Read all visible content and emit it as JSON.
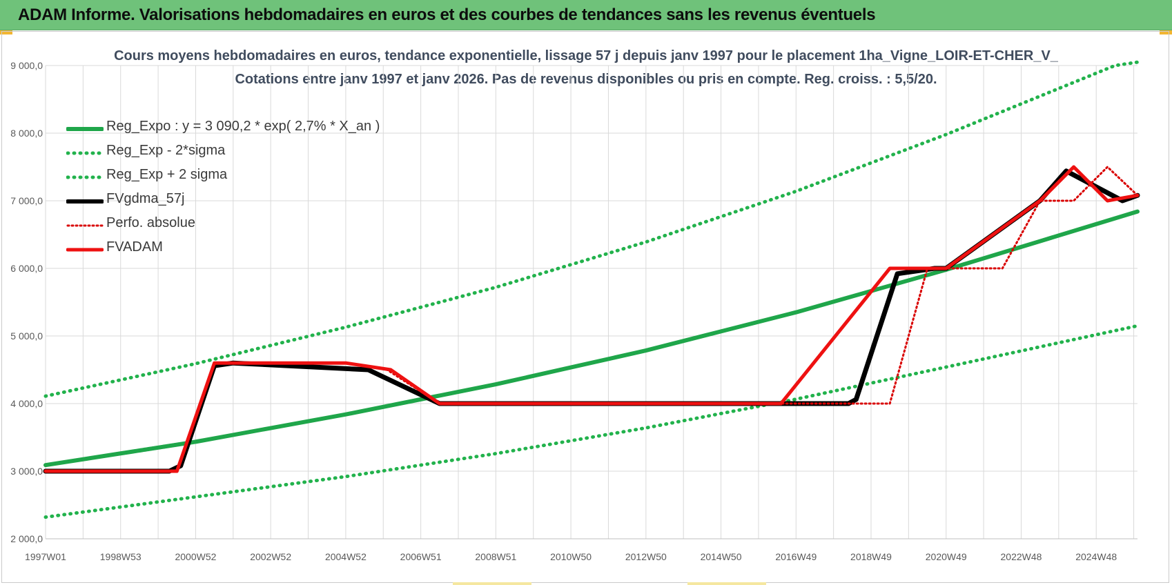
{
  "banner": {
    "title": "ADAM Informe. Valorisations hebdomadaires en euros et des courbes de tendances sans les revenus éventuels"
  },
  "colors": {
    "banner": "#6fc27a",
    "reg_expo": "#1fa64a",
    "sigma": "#22b24c",
    "fvgdma": "#000000",
    "perfo": "#d90000",
    "fvadam": "#ee1111",
    "grid": "#d9d9d9",
    "axis_text": "#595959"
  },
  "chart_data": {
    "type": "line",
    "title_line1": "Cours moyens hebdomadaires en euros, tendance exponentielle, lissage 57 j depuis janv 1997 pour le placement 1ha_Vigne_LOIR-ET-CHER_V_",
    "title_line2": "Cotations entre janv 1997 et janv 2026. Pas de revenus disponibles ou pris en compte. Reg. croiss. : 5,5/20.",
    "ylim": [
      2000,
      9000
    ],
    "xlim": [
      1997.0,
      2026.1
    ],
    "y_ticks": [
      "2 000,0",
      "3 000,0",
      "4 000,0",
      "5 000,0",
      "6 000,0",
      "7 000,0",
      "8 000,0",
      "9 000,0"
    ],
    "y_tick_values": [
      2000,
      3000,
      4000,
      5000,
      6000,
      7000,
      8000,
      9000
    ],
    "x_tick_labels": [
      "1997W01",
      "1998W53",
      "2000W52",
      "2002W52",
      "2004W52",
      "2006W51",
      "2008W51",
      "2010W50",
      "2012W50",
      "2014W50",
      "2016W49",
      "2018W49",
      "2020W49",
      "2022W48",
      "2024W48"
    ],
    "x_tick_values": [
      1997,
      1999,
      2001,
      2003,
      2005,
      2007,
      2009,
      2011,
      2013,
      2015,
      2017,
      2019,
      2021,
      2023,
      2025
    ],
    "grid": true,
    "legend_position": "top-left",
    "series": [
      {
        "name": "Reg_Expo : y = 3 090,2 * exp( 2,7% *  X_an )",
        "style": "solid-green",
        "x": [
          1997,
          2001,
          2005,
          2009,
          2013,
          2017,
          2021,
          2026.1
        ],
        "y": [
          3090,
          3435,
          3840,
          4285,
          4785,
          5350,
          5980,
          6840
        ]
      },
      {
        "name": "Reg_Exp - 2*sigma",
        "style": "dotted-green",
        "x": [
          1997,
          2001,
          2005,
          2009,
          2013,
          2017,
          2021,
          2026.1
        ],
        "y": [
          2320,
          2620,
          2920,
          3260,
          3640,
          4065,
          4540,
          5150
        ]
      },
      {
        "name": "Reg_Exp + 2 sigma",
        "style": "dotted-green",
        "x": [
          1997,
          2001,
          2005,
          2009,
          2013,
          2017,
          2021,
          2025.5,
          2026.1
        ],
        "y": [
          4110,
          4590,
          5130,
          5720,
          6390,
          7140,
          7980,
          9000,
          9050
        ]
      },
      {
        "name": "FVgdma_57j",
        "style": "solid-black",
        "x": [
          1997,
          2000.3,
          2000.6,
          2001.5,
          2002.0,
          2005.6,
          2007.5,
          2018.4,
          2018.6,
          2019.7,
          2020.7,
          2021.0,
          2023.5,
          2024.2,
          2025.7,
          2026.1
        ],
        "y": [
          3000,
          3000,
          3080,
          4560,
          4600,
          4500,
          4000,
          4000,
          4060,
          5920,
          6000,
          6000,
          7000,
          7440,
          7000,
          7080
        ]
      },
      {
        "name": "Perfo. absolue",
        "style": "dotted-red",
        "x": [
          1997,
          2000.5,
          2001.5,
          2005.0,
          2006.1,
          2007.5,
          2018.6,
          2019.5,
          2020.5,
          2021.0,
          2022.5,
          2023.5,
          2024.4,
          2025.3,
          2026.1
        ],
        "y": [
          3000,
          3000,
          4600,
          4600,
          4500,
          4000,
          4000,
          4000,
          6000,
          6000,
          6000,
          7000,
          7000,
          7500,
          7080
        ]
      },
      {
        "name": "FVADAM",
        "style": "solid-red",
        "x": [
          1997,
          2000.5,
          2001.5,
          2002.0,
          2005.0,
          2006.2,
          2007.5,
          2016.0,
          2016.6,
          2019.5,
          2020.5,
          2021.0,
          2023.5,
          2024.4,
          2025.3,
          2026.1
        ],
        "y": [
          3000,
          3000,
          4600,
          4600,
          4600,
          4500,
          4000,
          4000,
          4000,
          6000,
          6000,
          6000,
          7000,
          7500,
          7000,
          7080
        ]
      }
    ]
  }
}
